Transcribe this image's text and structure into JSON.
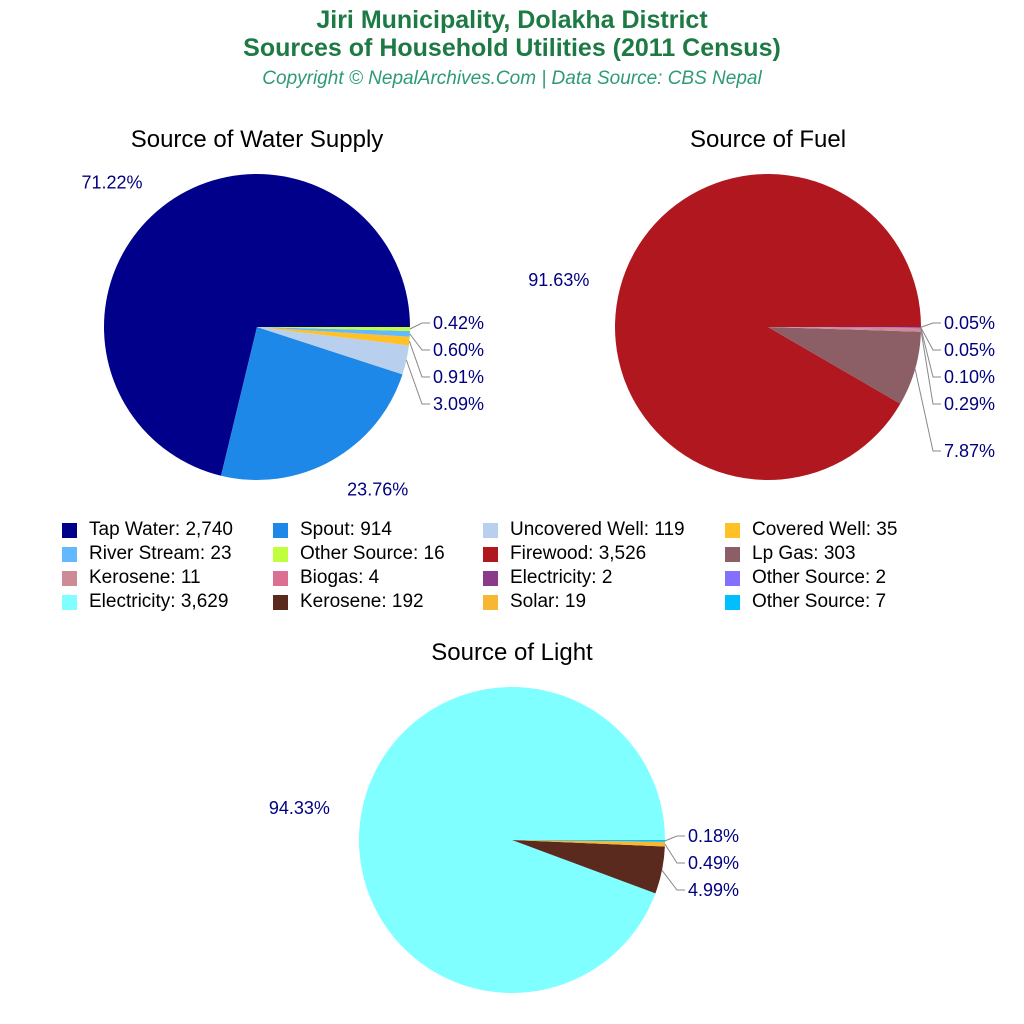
{
  "title_line1": "Jiri Municipality, Dolakha District",
  "title_line2": "Sources of Household Utilities (2011 Census)",
  "subtitle": "Copyright © NepalArchives.Com | Data Source: CBS Nepal",
  "chart_data": [
    {
      "type": "pie",
      "title": "Source of Water Supply",
      "slices": [
        {
          "name": "Tap Water",
          "value": 2740,
          "pct": "71.22%",
          "color": "#00008B"
        },
        {
          "name": "Spout",
          "value": 914,
          "pct": "23.76%",
          "color": "#1E88E8"
        },
        {
          "name": "Uncovered Well",
          "value": 119,
          "pct": "3.09%",
          "color": "#B8D0EE"
        },
        {
          "name": "Covered Well",
          "value": 35,
          "pct": "0.91%",
          "color": "#FFC125"
        },
        {
          "name": "River Stream",
          "value": 23,
          "pct": "0.60%",
          "color": "#63B8FF"
        },
        {
          "name": "Other Source",
          "value": 16,
          "pct": "0.42%",
          "color": "#BFFF3E"
        }
      ]
    },
    {
      "type": "pie",
      "title": "Source of Fuel",
      "slices": [
        {
          "name": "Firewood",
          "value": 3526,
          "pct": "91.63%",
          "color": "#B0171F"
        },
        {
          "name": "Lp Gas",
          "value": 303,
          "pct": "7.87%",
          "color": "#8B5F65"
        },
        {
          "name": "Kerosene",
          "value": 11,
          "pct": "0.29%",
          "color": "#CD8C95"
        },
        {
          "name": "Biogas",
          "value": 4,
          "pct": "0.10%",
          "color": "#DB7093"
        },
        {
          "name": "Electricity",
          "value": 2,
          "pct": "0.05%",
          "color": "#8B3A8B"
        },
        {
          "name": "Other Source",
          "value": 2,
          "pct": "0.05%",
          "color": "#8470FF"
        }
      ]
    },
    {
      "type": "pie",
      "title": "Source of Light",
      "slices": [
        {
          "name": "Electricity",
          "value": 3629,
          "pct": "94.33%",
          "color": "#7FFFFF"
        },
        {
          "name": "Kerosene",
          "value": 192,
          "pct": "4.99%",
          "color": "#5A2A1E"
        },
        {
          "name": "Solar",
          "value": 19,
          "pct": "0.49%",
          "color": "#F7B733"
        },
        {
          "name": "Other Source",
          "value": 7,
          "pct": "0.18%",
          "color": "#00BFFF"
        }
      ]
    }
  ],
  "legend": [
    {
      "label": "Tap Water: 2,740",
      "color": "#00008B"
    },
    {
      "label": "Spout: 914",
      "color": "#1E88E8"
    },
    {
      "label": "Uncovered Well: 119",
      "color": "#B8D0EE"
    },
    {
      "label": "Covered Well: 35",
      "color": "#FFC125"
    },
    {
      "label": "River Stream: 23",
      "color": "#63B8FF"
    },
    {
      "label": "Other Source: 16",
      "color": "#BFFF3E"
    },
    {
      "label": "Firewood: 3,526",
      "color": "#B0171F"
    },
    {
      "label": "Lp Gas: 303",
      "color": "#8B5F65"
    },
    {
      "label": "Kerosene: 11",
      "color": "#CD8C95"
    },
    {
      "label": "Biogas: 4",
      "color": "#DB7093"
    },
    {
      "label": "Electricity: 2",
      "color": "#8B3A8B"
    },
    {
      "label": "Other Source: 2",
      "color": "#8470FF"
    },
    {
      "label": "Electricity: 3,629",
      "color": "#7FFFFF"
    },
    {
      "label": "Kerosene: 192",
      "color": "#5A2A1E"
    },
    {
      "label": "Solar: 19",
      "color": "#F7B733"
    },
    {
      "label": "Other Source: 7",
      "color": "#00BFFF"
    }
  ],
  "label_color": "#000080"
}
